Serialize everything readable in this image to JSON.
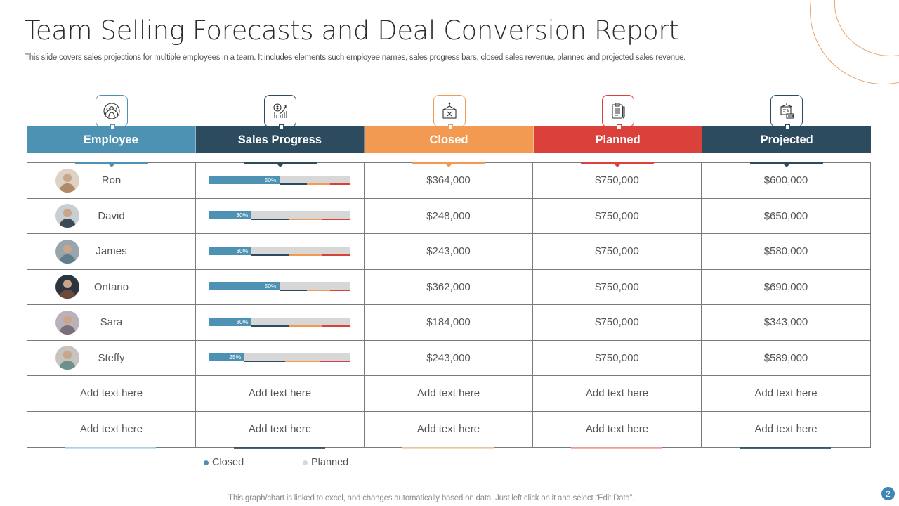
{
  "title": "Team Selling Forecasts and Deal Conversion Report",
  "subtitle": "This slide covers sales projections for multiple employees in a team. It includes elements such employee names, sales progress bars, closed sales revenue, planned and projected sales revenue.",
  "colors": {
    "employee": "#4e92b3",
    "sales_progress": "#2d4b5f",
    "closed": "#f39a52",
    "planned": "#d9413a",
    "projected": "#2d4b5f",
    "bar_track": "#d7d7d7",
    "accent_orange": "#e9a36c"
  },
  "columns": [
    {
      "label": "Employee",
      "icon": "team-people-icon",
      "color": "#4e92b3"
    },
    {
      "label": "Sales Progress",
      "icon": "money-growth-chart-icon",
      "color": "#2d4b5f"
    },
    {
      "label": "Closed",
      "icon": "closed-hanging-sign-icon",
      "color": "#f39a52"
    },
    {
      "label": "Planned",
      "icon": "clipboard-checklist-icon",
      "color": "#d9413a"
    },
    {
      "label": "Projected",
      "icon": "presentation-board-icon",
      "color": "#2d4b5f"
    }
  ],
  "rows": [
    {
      "name": "Ron",
      "progress": 50,
      "progress_label": "50%",
      "closed": "$364,000",
      "planned": "$750,000",
      "projected": "$600,000"
    },
    {
      "name": "David",
      "progress": 30,
      "progress_label": "30%",
      "closed": "$248,000",
      "planned": "$750,000",
      "projected": "$650,000"
    },
    {
      "name": "James",
      "progress": 30,
      "progress_label": "30%",
      "closed": "$243,000",
      "planned": "$750,000",
      "projected": "$580,000"
    },
    {
      "name": "Ontario",
      "progress": 50,
      "progress_label": "50%",
      "closed": "$362,000",
      "planned": "$750,000",
      "projected": "$690,000"
    },
    {
      "name": "Sara",
      "progress": 30,
      "progress_label": "30%",
      "closed": "$184,000",
      "planned": "$750,000",
      "projected": "$343,000"
    },
    {
      "name": "Steffy",
      "progress": 25,
      "progress_label": "25%",
      "closed": "$243,000",
      "planned": "$750,000",
      "projected": "$589,000"
    }
  ],
  "placeholder_rows": [
    [
      "Add text here",
      "Add text here",
      "Add text here",
      "Add text here",
      "Add text here"
    ],
    [
      "Add text here",
      "Add text here",
      "Add text here",
      "Add text here",
      "Add text here"
    ]
  ],
  "legend": [
    {
      "label": "Closed",
      "color": "#4e92b3"
    },
    {
      "label": "Planned",
      "color": "#d7d7d7"
    }
  ],
  "footer_note": "This graph/chart is linked to excel,  and changes automatically based on data. Just left click on it and select “Edit Data”.",
  "page_number": "2"
}
